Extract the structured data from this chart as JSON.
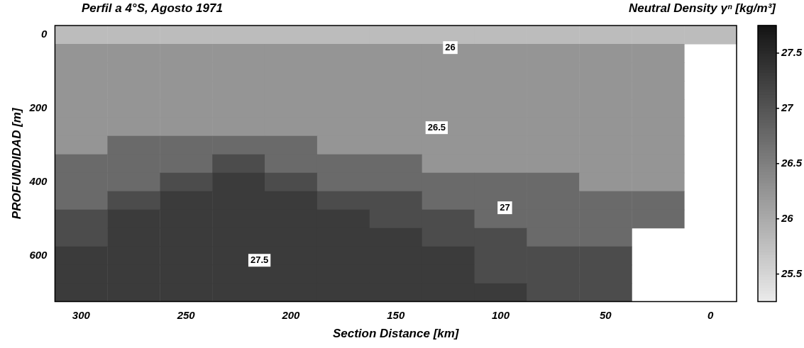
{
  "chart_data": {
    "type": "heatmap",
    "title": "Perfil a 4°S, Agosto 1971",
    "xlabel": "Section Distance [km]",
    "ylabel": "PROFUNDIDAD [m]",
    "clabel": "Neutral Density γⁿ [kg/m³]",
    "categories": [
      "300",
      null,
      "250",
      null,
      "200",
      null,
      "150",
      null,
      "100",
      null,
      "50",
      null,
      "0"
    ],
    "y_categories": [
      "0",
      null,
      null,
      null,
      "200",
      null,
      null,
      null,
      "400",
      null,
      null,
      null,
      "600",
      null,
      null
    ],
    "cells": [
      [
        25.8,
        25.8,
        25.8,
        25.8,
        25.8,
        25.8,
        25.8,
        25.8,
        25.8,
        25.8,
        25.8,
        25.8,
        25.8
      ],
      [
        26.25,
        26.25,
        26.25,
        26.25,
        26.25,
        26.25,
        26.25,
        26.25,
        26.25,
        26.25,
        26.25,
        26.25,
        null
      ],
      [
        26.25,
        26.25,
        26.25,
        26.25,
        26.25,
        26.25,
        26.25,
        26.25,
        26.25,
        26.25,
        26.25,
        26.25,
        null
      ],
      [
        26.25,
        26.25,
        26.25,
        26.25,
        26.25,
        26.25,
        26.25,
        26.25,
        26.25,
        26.25,
        26.25,
        26.25,
        null
      ],
      [
        26.25,
        26.25,
        26.25,
        26.25,
        26.25,
        26.25,
        26.25,
        26.25,
        26.25,
        26.25,
        26.25,
        26.25,
        null
      ],
      [
        26.25,
        26.25,
        26.25,
        26.25,
        26.25,
        26.25,
        26.25,
        26.25,
        26.25,
        26.25,
        26.25,
        26.25,
        null
      ],
      [
        26.25,
        26.75,
        26.75,
        26.75,
        26.75,
        26.25,
        26.25,
        26.25,
        26.25,
        26.25,
        26.25,
        26.25,
        null
      ],
      [
        26.75,
        26.75,
        26.75,
        27.1,
        26.75,
        26.75,
        26.75,
        26.25,
        26.25,
        26.25,
        26.25,
        26.25,
        null
      ],
      [
        26.75,
        26.75,
        27.1,
        27.3,
        27.1,
        26.75,
        26.75,
        26.75,
        26.75,
        26.75,
        26.25,
        26.25,
        null
      ],
      [
        26.75,
        27.1,
        27.3,
        27.3,
        27.3,
        27.1,
        27.1,
        26.75,
        26.75,
        26.75,
        26.75,
        26.75,
        null
      ],
      [
        27.1,
        27.3,
        27.3,
        27.3,
        27.3,
        27.3,
        27.1,
        27.1,
        26.75,
        26.75,
        26.75,
        26.75,
        null
      ],
      [
        27.1,
        27.3,
        27.3,
        27.3,
        27.3,
        27.3,
        27.3,
        27.1,
        27.1,
        26.75,
        26.75,
        null,
        null
      ],
      [
        27.3,
        27.3,
        27.3,
        27.3,
        27.3,
        27.3,
        27.3,
        27.3,
        27.1,
        27.1,
        27.1,
        null,
        null
      ],
      [
        27.3,
        27.3,
        27.3,
        27.3,
        27.3,
        27.3,
        27.3,
        27.3,
        27.1,
        27.1,
        27.1,
        null,
        null
      ],
      [
        27.3,
        27.3,
        27.3,
        27.3,
        27.3,
        27.3,
        27.3,
        27.3,
        27.3,
        27.1,
        27.1,
        null,
        null
      ]
    ],
    "clim": [
      25.25,
      27.75
    ],
    "cticks": [
      25.5,
      26,
      26.5,
      27,
      27.5
    ],
    "annotations": [
      "26",
      "26.5",
      "27",
      "27.5"
    ]
  }
}
